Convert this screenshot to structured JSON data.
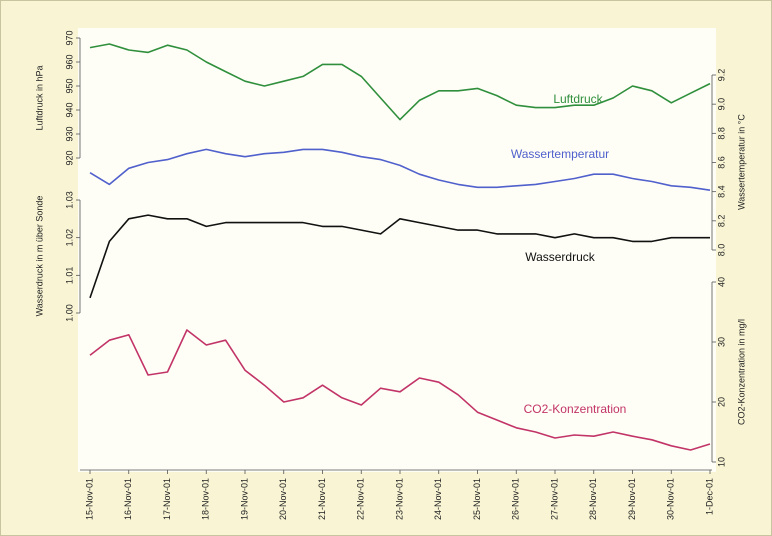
{
  "chart_data": {
    "type": "line",
    "categories": [
      "15-Nov-01",
      null,
      "16-Nov-01",
      null,
      "17-Nov-01",
      null,
      "18-Nov-01",
      null,
      "19-Nov-01",
      null,
      "20-Nov-01",
      null,
      "21-Nov-01",
      null,
      "22-Nov-01",
      null,
      "23-Nov-01",
      null,
      "24-Nov-01",
      null,
      "25-Nov-01",
      null,
      "26-Nov-01",
      null,
      "27-Nov-01",
      null,
      "28-Nov-01",
      null,
      "29-Nov-01",
      null,
      "30-Nov-01",
      null,
      "1-Dec-01"
    ],
    "ylabel": "Luftdruck in hPa",
    "ylim": [
      920,
      970
    ],
    "yticks": [
      920,
      930,
      940,
      950,
      960,
      970
    ],
    "y2label": "Wassertemperatur in °C",
    "y2lim": [
      8.0,
      9.2
    ],
    "y2ticks": [
      {
        "value": 8.0,
        "label": "8.0"
      },
      8.2,
      8.4,
      8.6,
      8.8,
      {
        "value": 9.0,
        "label": "9.0"
      },
      9.2
    ],
    "y3label": "Wasserdruck in m über Sonde",
    "y3lim": [
      1.0,
      1.03
    ],
    "y3ticks": [
      {
        "value": 1.0,
        "label": "1.00"
      },
      1.01,
      1.02,
      1.03
    ],
    "y4label": "CO2-Konzentration in mg/l",
    "y4lim": [
      10,
      40
    ],
    "y4ticks": [
      10,
      20,
      30,
      40
    ],
    "series": [
      {
        "name": "Luftdruck",
        "color": "#2f8f3c",
        "axis": "y",
        "values": [
          966,
          967.5,
          965,
          964,
          967,
          965,
          960,
          956,
          952,
          950,
          952,
          954,
          959,
          959,
          954,
          945,
          936,
          944,
          948,
          948,
          949,
          946,
          942,
          941,
          941,
          942,
          942,
          945,
          950,
          948,
          943,
          947,
          951
        ]
      },
      {
        "name": "Wassertemperatur",
        "color": "#5060cc",
        "axis": "y2",
        "values": [
          8.53,
          8.45,
          8.56,
          8.6,
          8.62,
          8.66,
          8.69,
          8.66,
          8.64,
          8.66,
          8.67,
          8.69,
          8.69,
          8.67,
          8.64,
          8.62,
          8.58,
          8.52,
          8.48,
          8.45,
          8.43,
          8.43,
          8.44,
          8.45,
          8.47,
          8.49,
          8.52,
          8.52,
          8.49,
          8.47,
          8.44,
          8.43,
          8.41
        ]
      },
      {
        "name": "Wasserdruck",
        "color": "#111111",
        "axis": "y3",
        "values": [
          1.004,
          1.019,
          1.025,
          1.026,
          1.025,
          1.025,
          1.023,
          1.024,
          1.024,
          1.024,
          1.024,
          1.024,
          1.023,
          1.023,
          1.022,
          1.021,
          1.025,
          1.024,
          1.023,
          1.022,
          1.022,
          1.021,
          1.021,
          1.021,
          1.02,
          1.021,
          1.02,
          1.02,
          1.019,
          1.019,
          1.02,
          1.02,
          1.02
        ]
      },
      {
        "name": "CO2-Konzentration",
        "color": "#c23468",
        "axis": "y4",
        "values": [
          27.8,
          30.3,
          31.2,
          24.5,
          25,
          32,
          29.5,
          30.3,
          25.3,
          22.8,
          20,
          20.7,
          22.8,
          20.7,
          19.5,
          22.3,
          21.7,
          24,
          23.3,
          21.2,
          18.3,
          17,
          15.7,
          15,
          14,
          14.5,
          14.3,
          15,
          14.3,
          13.7,
          12.7,
          12,
          13
        ]
      }
    ]
  }
}
